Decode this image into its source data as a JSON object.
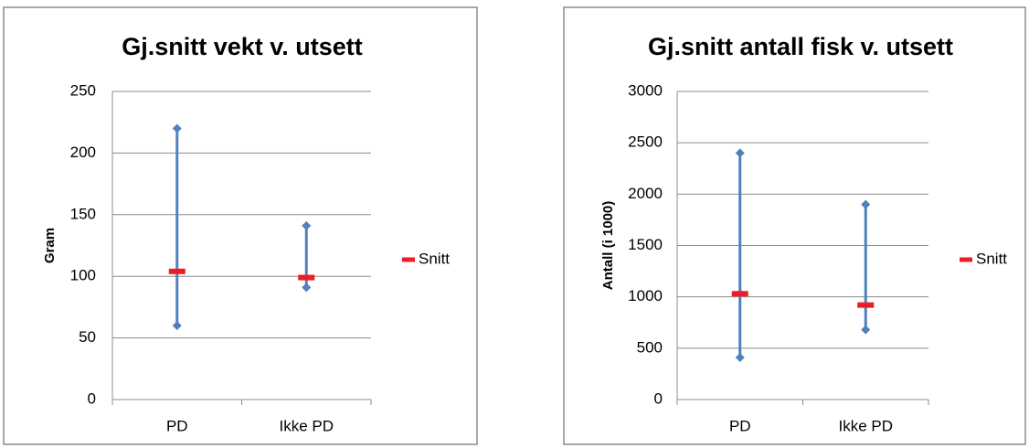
{
  "chart_data": [
    {
      "type": "high-low-mean",
      "title": "Gj.snitt vekt v. utsett",
      "xlabel": "",
      "ylabel": "Gram",
      "categories": [
        "PD",
        "Ikke PD"
      ],
      "ylim": [
        0,
        250
      ],
      "yticks": [
        0,
        50,
        100,
        150,
        200,
        250
      ],
      "grid": true,
      "legend": {
        "position": "right",
        "entries": [
          "Snitt"
        ]
      },
      "series": [
        {
          "name": "",
          "role": "max",
          "values": [
            220,
            141
          ],
          "color": "#4f81bd"
        },
        {
          "name": "",
          "role": "min",
          "values": [
            60,
            91
          ],
          "color": "#4f81bd"
        },
        {
          "name": "Snitt",
          "role": "mean",
          "values": [
            104,
            99
          ],
          "color": "#ee1c25"
        }
      ]
    },
    {
      "type": "high-low-mean",
      "title": "Gj.snitt antall fisk v. utsett",
      "xlabel": "",
      "ylabel": "Antall (i 1000)",
      "categories": [
        "PD",
        "Ikke PD"
      ],
      "ylim": [
        0,
        3000
      ],
      "yticks": [
        0,
        500,
        1000,
        1500,
        2000,
        2500,
        3000
      ],
      "grid": true,
      "legend": {
        "position": "right",
        "entries": [
          "Snitt"
        ]
      },
      "series": [
        {
          "name": "",
          "role": "max",
          "values": [
            2400,
            1900
          ],
          "color": "#4f81bd"
        },
        {
          "name": "",
          "role": "min",
          "values": [
            410,
            680
          ],
          "color": "#4f81bd"
        },
        {
          "name": "Snitt",
          "role": "mean",
          "values": [
            1030,
            920
          ],
          "color": "#ee1c25"
        }
      ]
    }
  ]
}
